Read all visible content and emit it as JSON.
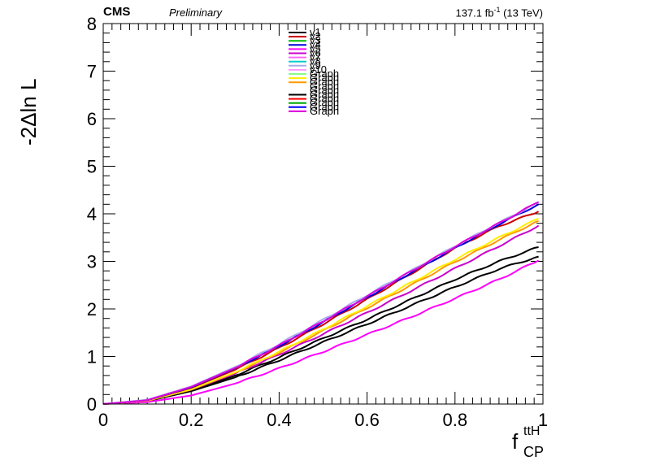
{
  "header": {
    "experiment": "CMS",
    "status": "Preliminary",
    "lumi_value": "137.1 fb",
    "lumi_exp": "-1",
    "energy": " (13 TeV)"
  },
  "chart_data": {
    "type": "line",
    "ylabel": "-2Δln L",
    "xlabel_main": "f",
    "xlabel_sup": "ttH",
    "xlabel_sub": "CP",
    "xlim": [
      0,
      1
    ],
    "ylim": [
      0,
      8
    ],
    "x_ticks": [
      "0",
      "0.2",
      "0.4",
      "0.6",
      "0.8",
      "1"
    ],
    "y_ticks": [
      "0",
      "1",
      "2",
      "3",
      "4",
      "5",
      "6",
      "7",
      "8"
    ],
    "legend_placement": "top-center",
    "legend": [
      {
        "name": "v1",
        "color": "#000000"
      },
      {
        "name": "v2",
        "color": "#cc0000"
      },
      {
        "name": "v3",
        "color": "#00bb00"
      },
      {
        "name": "v4",
        "color": "#0000dd"
      },
      {
        "name": "v5",
        "color": "#ff00ff"
      },
      {
        "name": "v6",
        "color": "#cc00cc"
      },
      {
        "name": "v7",
        "color": "#ff66ff"
      },
      {
        "name": "v8",
        "color": "#00cccc"
      },
      {
        "name": "v9",
        "color": "#aaaaee"
      },
      {
        "name": "v10",
        "color": "#ff99ff"
      },
      {
        "name": "Graph",
        "color": "#88ff88"
      },
      {
        "name": "Graph",
        "color": "#ffee00"
      },
      {
        "name": "Graph",
        "color": "#ff9900"
      },
      {
        "name": "Graph",
        "color": "#ffffff"
      },
      {
        "name": "Graph",
        "color": "#ffffff"
      },
      {
        "name": "Graph",
        "color": "#000000"
      },
      {
        "name": "Graph",
        "color": "#ff0000"
      },
      {
        "name": "Graph",
        "color": "#00aa00"
      },
      {
        "name": "Graph",
        "color": "#0000ff"
      },
      {
        "name": "Graph",
        "color": "#dd00dd"
      }
    ],
    "series": [
      {
        "color": "#000000",
        "x": [
          0,
          0.1,
          0.2,
          0.3,
          0.4,
          0.5,
          0.6,
          0.7,
          0.8,
          0.9,
          0.99
        ],
        "values": [
          0,
          0.06,
          0.27,
          0.56,
          0.92,
          1.3,
          1.68,
          2.07,
          2.46,
          2.84,
          3.1
        ]
      },
      {
        "color": "#000000",
        "x": [
          0,
          0.1,
          0.2,
          0.3,
          0.4,
          0.5,
          0.6,
          0.7,
          0.8,
          0.9,
          0.99
        ],
        "values": [
          0,
          0.06,
          0.28,
          0.6,
          0.98,
          1.38,
          1.78,
          2.2,
          2.62,
          3.0,
          3.3
        ]
      },
      {
        "color": "#ff00ff",
        "x": [
          0,
          0.1,
          0.2,
          0.3,
          0.4,
          0.5,
          0.6,
          0.7,
          0.8,
          0.9,
          0.99
        ],
        "values": [
          0,
          0.04,
          0.18,
          0.43,
          0.75,
          1.1,
          1.46,
          1.83,
          2.22,
          2.62,
          3.02
        ]
      },
      {
        "color": "#cc00cc",
        "x": [
          0,
          0.1,
          0.2,
          0.3,
          0.4,
          0.5,
          0.6,
          0.7,
          0.8,
          0.9,
          0.99
        ],
        "values": [
          0,
          0.07,
          0.3,
          0.64,
          1.04,
          1.47,
          1.92,
          2.38,
          2.85,
          3.32,
          3.75
        ]
      },
      {
        "color": "#ff9900",
        "x": [
          0,
          0.1,
          0.2,
          0.3,
          0.4,
          0.5,
          0.6,
          0.7,
          0.8,
          0.9,
          0.99
        ],
        "values": [
          0,
          0.07,
          0.3,
          0.66,
          1.08,
          1.54,
          2.02,
          2.5,
          2.99,
          3.45,
          3.85
        ]
      },
      {
        "color": "#ffee00",
        "x": [
          0,
          0.1,
          0.2,
          0.3,
          0.4,
          0.5,
          0.6,
          0.7,
          0.8,
          0.9,
          0.99
        ],
        "values": [
          0,
          0.07,
          0.31,
          0.67,
          1.1,
          1.57,
          2.06,
          2.55,
          3.04,
          3.5,
          3.9
        ]
      },
      {
        "color": "#cc0000",
        "x": [
          0,
          0.1,
          0.2,
          0.3,
          0.4,
          0.5,
          0.6,
          0.7,
          0.8,
          0.9,
          0.99
        ],
        "values": [
          0,
          0.08,
          0.34,
          0.72,
          1.18,
          1.68,
          2.2,
          2.74,
          3.28,
          3.74,
          4.05
        ]
      },
      {
        "color": "#0000dd",
        "x": [
          0,
          0.1,
          0.2,
          0.3,
          0.4,
          0.5,
          0.6,
          0.7,
          0.8,
          0.9,
          0.99
        ],
        "values": [
          0,
          0.08,
          0.35,
          0.75,
          1.22,
          1.72,
          2.24,
          2.76,
          3.28,
          3.78,
          4.2
        ]
      },
      {
        "color": "#aaaaee",
        "x": [
          0,
          0.1,
          0.2,
          0.3,
          0.4,
          0.5,
          0.6,
          0.7,
          0.8,
          0.9,
          0.99
        ],
        "values": [
          0,
          0.09,
          0.37,
          0.78,
          1.26,
          1.77,
          2.29,
          2.8,
          3.32,
          3.81,
          4.24
        ]
      },
      {
        "color": "#dd00dd",
        "x": [
          0,
          0.1,
          0.2,
          0.3,
          0.4,
          0.5,
          0.6,
          0.7,
          0.8,
          0.9,
          0.99
        ],
        "values": [
          0,
          0.08,
          0.36,
          0.76,
          1.23,
          1.74,
          2.26,
          2.79,
          3.31,
          3.8,
          4.25
        ]
      }
    ]
  }
}
